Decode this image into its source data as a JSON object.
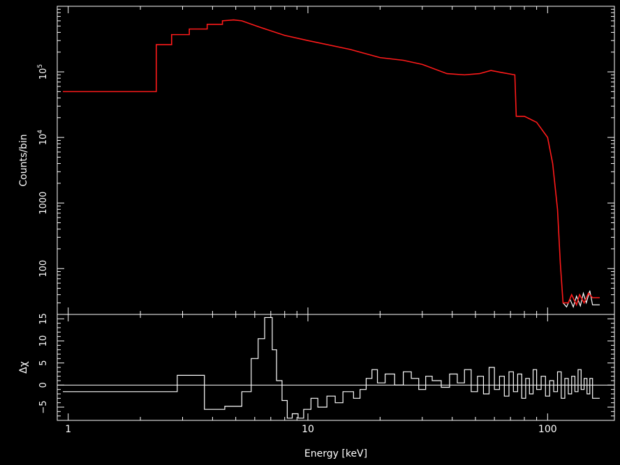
{
  "chart_data": {
    "type": "line",
    "xlabel": "Energy [keV]",
    "xscale": "log",
    "xlim": [
      0.9,
      190
    ],
    "x_ticks": [
      {
        "value": 1,
        "label": "1"
      },
      {
        "value": 10,
        "label": "10"
      },
      {
        "value": 100,
        "label": "100"
      }
    ],
    "grid": false,
    "colors": {
      "background": "#000000",
      "axes": "#ffffff",
      "data": "#ffffff",
      "model": "#ff1a1a"
    },
    "panels": [
      {
        "id": "spectrum",
        "ylabel": "Counts/bin",
        "yscale": "log",
        "ylim": [
          20,
          1000000
        ],
        "y_ticks": [
          {
            "value": 100,
            "label": "100"
          },
          {
            "value": 1000,
            "label": "1000"
          },
          {
            "value": 10000,
            "label": "10",
            "exp": "4"
          },
          {
            "value": 100000,
            "label": "10",
            "exp": "5"
          }
        ],
        "series": [
          {
            "role": "model",
            "color": "#ff1a1a",
            "points": [
              [
                0.95,
                50000
              ],
              [
                2.33,
                50000
              ],
              [
                2.33,
                260000
              ],
              [
                2.7,
                260000
              ],
              [
                2.7,
                370000
              ],
              [
                3.2,
                370000
              ],
              [
                3.2,
                450000
              ],
              [
                3.8,
                450000
              ],
              [
                3.8,
                530000
              ],
              [
                4.4,
                530000
              ],
              [
                4.4,
                600000
              ],
              [
                4.9,
                620000
              ],
              [
                5.3,
                600000
              ],
              [
                6.3,
                480000
              ],
              [
                8,
                360000
              ],
              [
                10,
                300000
              ],
              [
                15,
                220000
              ],
              [
                20,
                165000
              ],
              [
                25,
                150000
              ],
              [
                30,
                130000
              ],
              [
                38,
                94000
              ],
              [
                45,
                90000
              ],
              [
                52,
                94000
              ],
              [
                58,
                105000
              ],
              [
                65,
                97000
              ],
              [
                73,
                90000
              ],
              [
                74,
                21000
              ],
              [
                80,
                21000
              ],
              [
                90,
                17000
              ],
              [
                100,
                10000
              ],
              [
                105,
                4000
              ],
              [
                110,
                800
              ],
              [
                113,
                120
              ],
              [
                116,
                30
              ],
              [
                122,
                30
              ],
              [
                126,
                40
              ],
              [
                132,
                28
              ],
              [
                136,
                40
              ],
              [
                142,
                30
              ],
              [
                148,
                42
              ],
              [
                154,
                36
              ],
              [
                165,
                36
              ]
            ]
          },
          {
            "role": "data",
            "color": "#ffffff",
            "points": [
              [
                116,
                30
              ],
              [
                120,
                26
              ],
              [
                124,
                34
              ],
              [
                128,
                26
              ],
              [
                132,
                38
              ],
              [
                137,
                27
              ],
              [
                141,
                42
              ],
              [
                145,
                30
              ],
              [
                150,
                46
              ],
              [
                154,
                28
              ],
              [
                156,
                28
              ],
              [
                165,
                28
              ]
            ]
          }
        ]
      },
      {
        "id": "residuals",
        "ylabel": "Δχ",
        "yscale": "linear",
        "ylim": [
          -8,
          16
        ],
        "y_ticks": [
          {
            "value": -5,
            "label": "−5"
          },
          {
            "value": 0,
            "label": "0"
          },
          {
            "value": 5,
            "label": "5"
          },
          {
            "value": 10,
            "label": "10"
          },
          {
            "value": 15,
            "label": "15"
          }
        ],
        "zero_line": true,
        "series": [
          {
            "role": "residual",
            "color": "#ffffff",
            "points": [
              [
                0.95,
                -1.5
              ],
              [
                2.85,
                -1.5
              ],
              [
                2.85,
                2.2
              ],
              [
                3.7,
                2.2
              ],
              [
                3.7,
                -5.5
              ],
              [
                4.5,
                -5.5
              ],
              [
                4.5,
                -4.8
              ],
              [
                5.3,
                -4.8
              ],
              [
                5.3,
                -1.5
              ],
              [
                5.8,
                -1.5
              ],
              [
                5.8,
                6
              ],
              [
                6.2,
                6
              ],
              [
                6.2,
                10.5
              ],
              [
                6.6,
                10.5
              ],
              [
                6.6,
                15.3
              ],
              [
                7.1,
                15.3
              ],
              [
                7.1,
                8
              ],
              [
                7.4,
                8
              ],
              [
                7.4,
                1
              ],
              [
                7.8,
                1
              ],
              [
                7.8,
                -3.5
              ],
              [
                8.2,
                -3.5
              ],
              [
                8.2,
                -7.5
              ],
              [
                8.6,
                -7.5
              ],
              [
                8.6,
                -6.5
              ],
              [
                9.1,
                -6.5
              ],
              [
                9.1,
                -7.5
              ],
              [
                9.6,
                -7.5
              ],
              [
                9.6,
                -5.5
              ],
              [
                10.3,
                -5.5
              ],
              [
                10.3,
                -3
              ],
              [
                11,
                -3
              ],
              [
                11,
                -5
              ],
              [
                12,
                -5
              ],
              [
                12,
                -2.5
              ],
              [
                13,
                -2.5
              ],
              [
                13,
                -4
              ],
              [
                14,
                -4
              ],
              [
                14,
                -1.5
              ],
              [
                15.5,
                -1.5
              ],
              [
                15.5,
                -3
              ],
              [
                16.5,
                -3
              ],
              [
                16.5,
                -1
              ],
              [
                17.5,
                -1
              ],
              [
                17.5,
                1.5
              ],
              [
                18.5,
                1.5
              ],
              [
                18.5,
                3.5
              ],
              [
                19.5,
                3.5
              ],
              [
                19.5,
                0.5
              ],
              [
                21,
                0.5
              ],
              [
                21,
                2.5
              ],
              [
                23,
                2.5
              ],
              [
                23,
                0
              ],
              [
                25,
                0
              ],
              [
                25,
                3
              ],
              [
                27,
                3
              ],
              [
                27,
                1.5
              ],
              [
                29,
                1.5
              ],
              [
                29,
                -1
              ],
              [
                31,
                -1
              ],
              [
                31,
                2
              ],
              [
                33,
                2
              ],
              [
                33,
                1
              ],
              [
                36,
                1
              ],
              [
                36,
                -0.5
              ],
              [
                39,
                -0.5
              ],
              [
                39,
                2.5
              ],
              [
                42,
                2.5
              ],
              [
                42,
                0.5
              ],
              [
                45,
                0.5
              ],
              [
                45,
                3.5
              ],
              [
                48,
                3.5
              ],
              [
                48,
                -1.5
              ],
              [
                51,
                -1.5
              ],
              [
                51,
                2
              ],
              [
                54,
                2
              ],
              [
                54,
                -2
              ],
              [
                57,
                -2
              ],
              [
                57,
                4
              ],
              [
                60,
                4
              ],
              [
                60,
                -1
              ],
              [
                63,
                -1
              ],
              [
                63,
                2
              ],
              [
                66,
                2
              ],
              [
                66,
                -2.5
              ],
              [
                69,
                -2.5
              ],
              [
                69,
                3
              ],
              [
                72,
                3
              ],
              [
                72,
                -1.5
              ],
              [
                75,
                -1.5
              ],
              [
                75,
                2.5
              ],
              [
                78,
                2.5
              ],
              [
                78,
                -3
              ],
              [
                81,
                -3
              ],
              [
                81,
                1.5
              ],
              [
                84,
                1.5
              ],
              [
                84,
                -2
              ],
              [
                87,
                -2
              ],
              [
                87,
                3.5
              ],
              [
                90,
                3.5
              ],
              [
                90,
                -1
              ],
              [
                94,
                -1
              ],
              [
                94,
                2
              ],
              [
                98,
                2
              ],
              [
                98,
                -2.5
              ],
              [
                102,
                -2.5
              ],
              [
                102,
                1
              ],
              [
                106,
                1
              ],
              [
                106,
                -1.5
              ],
              [
                110,
                -1.5
              ],
              [
                110,
                3
              ],
              [
                114,
                3
              ],
              [
                114,
                -3
              ],
              [
                118,
                -3
              ],
              [
                118,
                1.5
              ],
              [
                122,
                1.5
              ],
              [
                122,
                -2
              ],
              [
                126,
                -2
              ],
              [
                126,
                2
              ],
              [
                130,
                2
              ],
              [
                130,
                -1.5
              ],
              [
                134,
                -1.5
              ],
              [
                134,
                3.5
              ],
              [
                138,
                3.5
              ],
              [
                138,
                -1
              ],
              [
                142,
                -1
              ],
              [
                142,
                1.5
              ],
              [
                146,
                1.5
              ],
              [
                146,
                -2
              ],
              [
                150,
                -2
              ],
              [
                150,
                1.5
              ],
              [
                154,
                1.5
              ],
              [
                154,
                -3
              ],
              [
                158,
                -3
              ],
              [
                158,
                -3
              ],
              [
                165,
                -3
              ]
            ]
          }
        ]
      }
    ]
  }
}
